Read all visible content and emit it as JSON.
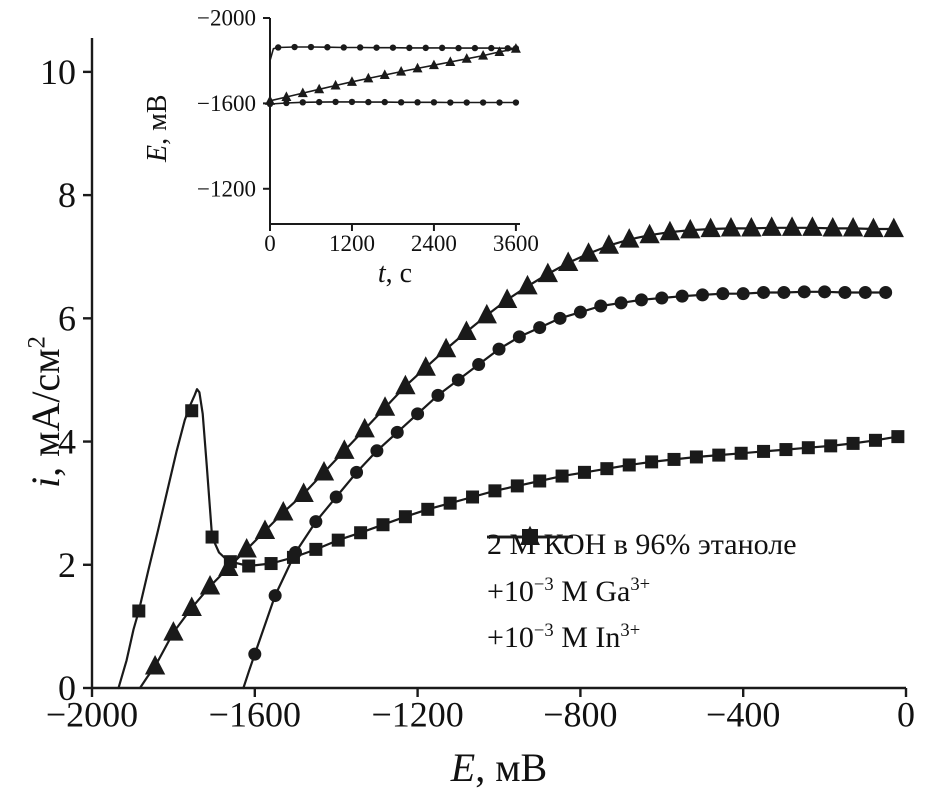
{
  "page": {
    "background": "#ffffff",
    "ink": "#1a1a1a"
  },
  "chart_data": [
    {
      "id": "main",
      "type": "line",
      "title": "",
      "xlabel": {
        "var": "E",
        "rest": ", мВ"
      },
      "ylabel": {
        "var": "i",
        "rest": ", мА/см",
        "sup": "2"
      },
      "xlim": [
        -2000,
        0
      ],
      "ylim": [
        0,
        10.55
      ],
      "grid": false,
      "xticks": {
        "values": [
          -2000,
          -1600,
          -1200,
          -800,
          -400,
          0
        ],
        "labels": [
          "−2000",
          "−1600",
          "−1200",
          "−800",
          "−400",
          "0"
        ]
      },
      "yticks": {
        "values": [
          0,
          2,
          4,
          6,
          8,
          10
        ],
        "labels": [
          "0",
          "2",
          "4",
          "6",
          "8",
          "10"
        ]
      },
      "legend": {
        "position": "inside-bottom-right",
        "items": [
          {
            "marker": "circle",
            "label": "2 М КОН в 96% этаноле",
            "parts": [
              {
                "t": "2 М КОН в 96% этаноле"
              }
            ]
          },
          {
            "marker": "square",
            "label": "+10⁻³ М Ga³⁺",
            "parts": [
              {
                "t": "+10"
              },
              {
                "sup": "−3"
              },
              {
                "t": " М Ga"
              },
              {
                "sup": "3+"
              }
            ]
          },
          {
            "marker": "triangle",
            "label": "+10⁻³ М In³⁺",
            "parts": [
              {
                "t": "+10"
              },
              {
                "sup": "−3"
              },
              {
                "t": " М In"
              },
              {
                "sup": "3+"
              }
            ]
          }
        ]
      },
      "series": [
        {
          "key": "koh",
          "name": "2 М КОН в 96% этаноле",
          "marker": "circle",
          "x": [
            -1600,
            -1550,
            -1500,
            -1450,
            -1400,
            -1350,
            -1300,
            -1250,
            -1200,
            -1150,
            -1100,
            -1050,
            -1000,
            -950,
            -900,
            -850,
            -800,
            -750,
            -700,
            -650,
            -600,
            -550,
            -500,
            -450,
            -400,
            -350,
            -300,
            -250,
            -200,
            -150,
            -100,
            -50
          ],
          "y": [
            0.55,
            1.5,
            2.2,
            2.7,
            3.1,
            3.5,
            3.85,
            4.15,
            4.45,
            4.75,
            5.0,
            5.25,
            5.5,
            5.7,
            5.85,
            6.0,
            6.1,
            6.2,
            6.25,
            6.3,
            6.33,
            6.36,
            6.38,
            6.4,
            6.4,
            6.42,
            6.42,
            6.43,
            6.43,
            6.42,
            6.42,
            6.42
          ],
          "line_x": [
            -1628,
            -1614,
            -1600,
            -1550,
            -1500,
            -1450,
            -1400,
            -1350,
            -1300,
            -1250,
            -1200,
            -1150,
            -1100,
            -1050,
            -1000,
            -950,
            -900,
            -850,
            -800,
            -750,
            -700,
            -650,
            -600,
            -550,
            -500,
            -450,
            -400,
            -350,
            -300,
            -250,
            -200,
            -150,
            -100,
            -50
          ],
          "line_y": [
            0,
            0.28,
            0.55,
            1.5,
            2.2,
            2.7,
            3.1,
            3.5,
            3.85,
            4.15,
            4.45,
            4.75,
            5.0,
            5.25,
            5.5,
            5.7,
            5.85,
            6.0,
            6.1,
            6.2,
            6.25,
            6.3,
            6.33,
            6.36,
            6.38,
            6.4,
            6.4,
            6.42,
            6.42,
            6.43,
            6.43,
            6.42,
            6.42,
            6.42
          ]
        },
        {
          "key": "ga3",
          "name": "+10⁻³ М Ga³⁺",
          "marker": "square",
          "x": [
            -1885,
            -1755,
            -1705,
            -1660,
            -1615,
            -1560,
            -1505,
            -1450,
            -1395,
            -1340,
            -1285,
            -1230,
            -1175,
            -1120,
            -1065,
            -1010,
            -955,
            -900,
            -845,
            -790,
            -735,
            -680,
            -625,
            -570,
            -515,
            -460,
            -405,
            -350,
            -295,
            -240,
            -185,
            -130,
            -75,
            -20
          ],
          "y": [
            1.25,
            4.5,
            2.45,
            2.05,
            1.98,
            2.02,
            2.12,
            2.25,
            2.4,
            2.52,
            2.65,
            2.78,
            2.9,
            3.0,
            3.1,
            3.2,
            3.28,
            3.36,
            3.44,
            3.5,
            3.56,
            3.62,
            3.67,
            3.71,
            3.75,
            3.78,
            3.81,
            3.84,
            3.87,
            3.9,
            3.93,
            3.97,
            4.02,
            4.08
          ],
          "line_x": [
            -1935,
            -1915,
            -1898,
            -1885,
            -1862,
            -1838,
            -1815,
            -1792,
            -1772,
            -1758,
            -1748,
            -1742,
            -1736,
            -1728,
            -1718,
            -1705,
            -1688,
            -1672,
            -1660,
            -1615,
            -1560,
            -1505,
            -1450,
            -1395,
            -1340,
            -1285,
            -1230,
            -1175,
            -1120,
            -1065,
            -1010,
            -955,
            -900,
            -845,
            -790,
            -735,
            -680,
            -625,
            -570,
            -515,
            -460,
            -405,
            -350,
            -295,
            -240,
            -185,
            -130,
            -75,
            -20
          ],
          "line_y": [
            0,
            0.45,
            0.95,
            1.25,
            1.9,
            2.55,
            3.2,
            3.85,
            4.35,
            4.6,
            4.75,
            4.85,
            4.8,
            4.45,
            3.6,
            2.45,
            2.2,
            2.1,
            2.05,
            1.98,
            2.02,
            2.12,
            2.25,
            2.4,
            2.52,
            2.65,
            2.78,
            2.9,
            3.0,
            3.1,
            3.2,
            3.28,
            3.36,
            3.44,
            3.5,
            3.56,
            3.62,
            3.67,
            3.71,
            3.75,
            3.78,
            3.81,
            3.84,
            3.87,
            3.9,
            3.93,
            3.97,
            4.02,
            4.08
          ]
        },
        {
          "key": "in3",
          "name": "+10⁻³ М In³⁺",
          "marker": "triangle",
          "x": [
            -1845,
            -1800,
            -1755,
            -1710,
            -1665,
            -1620,
            -1575,
            -1530,
            -1480,
            -1430,
            -1380,
            -1330,
            -1280,
            -1230,
            -1180,
            -1130,
            -1080,
            -1030,
            -980,
            -930,
            -880,
            -830,
            -780,
            -730,
            -680,
            -630,
            -580,
            -530,
            -480,
            -430,
            -380,
            -330,
            -280,
            -230,
            -180,
            -130,
            -80,
            -30
          ],
          "y": [
            0.35,
            0.9,
            1.3,
            1.65,
            1.95,
            2.25,
            2.55,
            2.85,
            3.15,
            3.5,
            3.85,
            4.2,
            4.55,
            4.9,
            5.2,
            5.5,
            5.78,
            6.05,
            6.3,
            6.52,
            6.72,
            6.9,
            7.05,
            7.18,
            7.28,
            7.35,
            7.4,
            7.43,
            7.45,
            7.46,
            7.46,
            7.47,
            7.47,
            7.47,
            7.46,
            7.46,
            7.45,
            7.45
          ],
          "line_x": [
            -1882,
            -1864,
            -1845,
            -1800,
            -1755,
            -1710,
            -1665,
            -1620,
            -1575,
            -1530,
            -1480,
            -1430,
            -1380,
            -1330,
            -1280,
            -1230,
            -1180,
            -1130,
            -1080,
            -1030,
            -980,
            -930,
            -880,
            -830,
            -780,
            -730,
            -680,
            -630,
            -580,
            -530,
            -480,
            -430,
            -380,
            -330,
            -280,
            -230,
            -180,
            -130,
            -80,
            -30
          ],
          "line_y": [
            0,
            0.18,
            0.35,
            0.9,
            1.3,
            1.65,
            1.95,
            2.25,
            2.55,
            2.85,
            3.15,
            3.5,
            3.85,
            4.2,
            4.55,
            4.9,
            5.2,
            5.5,
            5.78,
            6.05,
            6.3,
            6.52,
            6.72,
            6.9,
            7.05,
            7.18,
            7.28,
            7.35,
            7.4,
            7.43,
            7.45,
            7.46,
            7.46,
            7.47,
            7.47,
            7.47,
            7.46,
            7.46,
            7.45,
            7.45
          ]
        }
      ]
    },
    {
      "id": "inset",
      "type": "line",
      "title": "",
      "xlabel": {
        "var": "t",
        "rest": ", с"
      },
      "ylabel": {
        "var": "E",
        "rest": ", мВ"
      },
      "xlim": [
        0,
        3660
      ],
      "ylim": [
        -1035,
        -2000
      ],
      "grid": false,
      "xticks": {
        "values": [
          0,
          1200,
          2400,
          3600
        ],
        "labels": [
          "0",
          "1200",
          "2400",
          "3600"
        ]
      },
      "yticks": {
        "values": [
          -2000,
          -1600,
          -1200
        ],
        "labels": [
          "−2000",
          "−1600",
          "−1200"
        ]
      },
      "series": [
        {
          "key": "inset-circles-upper",
          "marker": "circle",
          "x": [
            120,
            360,
            600,
            840,
            1080,
            1320,
            1560,
            1800,
            2040,
            2280,
            2520,
            2760,
            3000,
            3240,
            3480,
            3600
          ],
          "y": [
            -1862,
            -1864,
            -1864,
            -1863,
            -1862,
            -1862,
            -1861,
            -1861,
            -1860,
            -1860,
            -1860,
            -1859,
            -1859,
            -1859,
            -1858,
            -1858
          ],
          "line_x": [
            0,
            50,
            120,
            360,
            600,
            840,
            1080,
            1320,
            1560,
            1800,
            2040,
            2280,
            2520,
            2760,
            3000,
            3240,
            3480,
            3600
          ],
          "line_y": [
            -1800,
            -1856,
            -1862,
            -1864,
            -1864,
            -1863,
            -1862,
            -1862,
            -1861,
            -1861,
            -1860,
            -1860,
            -1860,
            -1859,
            -1859,
            -1859,
            -1858,
            -1858
          ]
        },
        {
          "key": "inset-triangles",
          "marker": "triangle",
          "x": [
            0,
            240,
            480,
            720,
            960,
            1200,
            1440,
            1680,
            1920,
            2160,
            2400,
            2640,
            2880,
            3120,
            3360,
            3600
          ],
          "y": [
            -1612,
            -1630,
            -1648,
            -1666,
            -1684,
            -1701,
            -1717,
            -1733,
            -1749,
            -1764,
            -1779,
            -1794,
            -1809,
            -1824,
            -1841,
            -1856
          ]
        },
        {
          "key": "inset-circles-lower",
          "marker": "circle",
          "x": [
            0,
            240,
            480,
            720,
            960,
            1200,
            1440,
            1680,
            1920,
            2160,
            2400,
            2640,
            2880,
            3120,
            3360,
            3600
          ],
          "y": [
            -1597,
            -1602,
            -1605,
            -1606,
            -1607,
            -1607,
            -1606,
            -1606,
            -1605,
            -1605,
            -1605,
            -1604,
            -1604,
            -1604,
            -1604,
            -1604
          ]
        }
      ]
    }
  ]
}
